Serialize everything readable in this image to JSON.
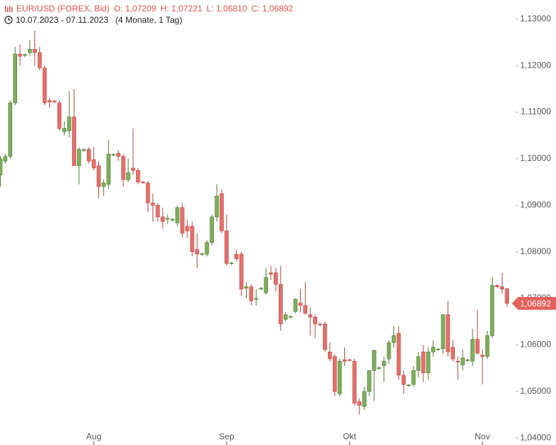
{
  "chart_data": {
    "type": "candlestick",
    "title": "EUR/USD (FOREX, Bid)",
    "ohlc_labels": [
      "O: 1,07209",
      "H: 1,07221",
      "L: 1,06810",
      "C: 1,06892"
    ],
    "date_range": "10.07.2023 - 07.11.2023",
    "duration": "(4 Monate, 1 Tag)",
    "last_label": "1,06892",
    "up_color": "#7fae5a",
    "down_color": "#e4706b",
    "categories": [
      null,
      null,
      null,
      null,
      null,
      null,
      null,
      null,
      null,
      null,
      null,
      null,
      null,
      null,
      null,
      null,
      null,
      null,
      null,
      "Aug",
      null,
      null,
      null,
      null,
      null,
      null,
      null,
      null,
      null,
      null,
      null,
      null,
      null,
      null,
      null,
      null,
      null,
      null,
      null,
      null,
      null,
      null,
      null,
      null,
      null,
      null,
      "Sep",
      null,
      null,
      null,
      null,
      null,
      null,
      null,
      null,
      null,
      null,
      null,
      null,
      null,
      null,
      null,
      null,
      null,
      null,
      null,
      null,
      null,
      null,
      null,
      null,
      "Okt",
      null,
      null,
      null,
      null,
      null,
      null,
      null,
      null,
      null,
      null,
      null,
      null,
      null,
      null,
      null,
      null,
      null,
      null,
      null,
      null,
      null,
      null,
      null,
      null,
      null,
      null,
      "Nov",
      null,
      null,
      null,
      null,
      null
    ],
    "open": [
      1.0965,
      1.0995,
      1.1005,
      1.112,
      1.1225,
      1.1222,
      1.1228,
      1.1235,
      1.1228,
      1.1195,
      1.1125,
      1.1124,
      1.112,
      1.1058,
      1.106,
      1.109,
      1.0985,
      1.1018,
      1.102,
      1.0998,
      1.0985,
      1.094,
      1.0945,
      1.1008,
      1.1012,
      1.1005,
      1.0955,
      1.098,
      1.0975,
      1.095,
      1.0948,
      1.0905,
      1.09,
      1.0875,
      1.087,
      1.0868,
      1.0862,
      1.0895,
      1.0855,
      1.0855,
      1.0805,
      1.0795,
      1.0795,
      1.082,
      1.0875,
      1.0925,
      1.0845,
      1.0775,
      1.0795,
      1.0795,
      1.0722,
      1.0725,
      1.0698,
      1.072,
      1.0712,
      1.0755,
      1.0755,
      1.073,
      1.0655,
      1.066,
      1.0672,
      1.069,
      1.0685,
      1.0665,
      1.066,
      1.0645,
      1.0645,
      1.0585,
      1.0575,
      1.0495,
      1.0568,
      1.0568,
      1.0565,
      1.0478,
      1.0468,
      1.05,
      1.0545,
      1.055,
      1.0555,
      1.057,
      1.0605,
      1.0625,
      1.0535,
      1.0513,
      1.0515,
      1.0545,
      1.0585,
      1.054,
      1.0585,
      1.059,
      1.0592,
      1.0665,
      1.0595,
      1.0565,
      1.0557,
      1.0567,
      1.0565,
      1.0612,
      1.0578,
      1.0575,
      1.062,
      1.0728,
      1.0725,
      1.07209
    ],
    "high": [
      1.1005,
      1.101,
      1.1125,
      1.124,
      1.1245,
      1.1226,
      1.1255,
      1.1275,
      1.124,
      1.12,
      1.113,
      1.1126,
      1.1125,
      1.108,
      1.1145,
      1.115,
      1.1025,
      1.1022,
      1.1025,
      1.1025,
      1.0995,
      1.0955,
      1.104,
      1.1012,
      1.1018,
      1.101,
      1.1,
      1.1065,
      1.098,
      1.0952,
      1.0952,
      1.0925,
      1.0905,
      1.0895,
      1.088,
      1.0872,
      1.09,
      1.0905,
      1.087,
      1.0865,
      1.084,
      1.0798,
      1.0825,
      1.088,
      1.0945,
      1.0935,
      1.088,
      1.0778,
      1.0805,
      1.08,
      1.0735,
      1.073,
      1.072,
      1.0724,
      1.0765,
      1.077,
      1.0765,
      1.077,
      1.067,
      1.0663,
      1.07,
      1.072,
      1.0735,
      1.068,
      1.0665,
      1.0648,
      1.065,
      1.0605,
      1.058,
      1.057,
      1.0595,
      1.057,
      1.057,
      1.0485,
      1.051,
      1.0545,
      1.059,
      1.0553,
      1.0575,
      1.061,
      1.064,
      1.064,
      1.0545,
      1.0516,
      1.0555,
      1.0585,
      1.06,
      1.0595,
      1.061,
      1.0593,
      1.0665,
      1.0695,
      1.061,
      1.0575,
      1.059,
      1.057,
      1.0635,
      1.0675,
      1.059,
      1.063,
      1.0745,
      1.073,
      1.0755,
      1.07221
    ],
    "low": [
      1.094,
      1.099,
      1.1,
      1.1115,
      1.12,
      1.1218,
      1.122,
      1.12,
      1.119,
      1.1115,
      1.111,
      1.112,
      1.106,
      1.105,
      1.1045,
      1.0985,
      1.0945,
      1.1015,
      1.099,
      1.0975,
      1.0915,
      1.092,
      1.0935,
      1.1005,
      1.0995,
      1.094,
      1.095,
      1.0965,
      1.0945,
      1.0947,
      1.0885,
      1.0865,
      1.0865,
      1.085,
      1.086,
      1.0865,
      1.0855,
      1.083,
      1.083,
      1.079,
      1.0765,
      1.0792,
      1.079,
      1.0815,
      1.0865,
      1.084,
      1.077,
      1.0772,
      1.078,
      1.0705,
      1.07,
      1.0685,
      1.0685,
      1.0718,
      1.0708,
      1.074,
      1.0715,
      1.063,
      1.065,
      1.0657,
      1.0668,
      1.067,
      1.0665,
      1.062,
      1.0615,
      1.064,
      1.0585,
      1.0565,
      1.049,
      1.049,
      1.0555,
      1.0565,
      1.047,
      1.045,
      1.046,
      1.049,
      1.048,
      1.0547,
      1.052,
      1.056,
      1.0595,
      1.0525,
      1.0495,
      1.051,
      1.051,
      1.053,
      1.052,
      1.0525,
      1.0575,
      1.0587,
      1.058,
      1.0575,
      1.0565,
      1.0525,
      1.0545,
      1.0564,
      1.0555,
      1.058,
      1.0515,
      1.057,
      1.0615,
      1.0722,
      1.071,
      1.0681
    ],
    "close": [
      1.1,
      1.1005,
      1.112,
      1.1225,
      1.122,
      1.1224,
      1.1235,
      1.1228,
      1.1195,
      1.112,
      1.1122,
      1.1122,
      1.1065,
      1.1065,
      1.109,
      1.0985,
      1.102,
      1.102,
      1.0995,
      1.098,
      1.094,
      1.0948,
      1.101,
      1.1009,
      1.1005,
      1.0955,
      1.097,
      1.0975,
      1.095,
      1.0948,
      1.0905,
      1.09,
      1.0875,
      1.0865,
      1.0872,
      1.087,
      1.0895,
      1.084,
      1.0845,
      1.08,
      1.0795,
      1.0796,
      1.082,
      1.0875,
      1.092,
      1.0845,
      1.0775,
      1.0776,
      1.0785,
      1.072,
      1.0725,
      1.0695,
      1.07,
      1.0722,
      1.0745,
      1.0752,
      1.073,
      1.0645,
      1.0665,
      1.0661,
      1.0698,
      1.0685,
      1.0668,
      1.066,
      1.0645,
      1.0644,
      1.059,
      1.057,
      1.05,
      1.0565,
      1.0565,
      1.0567,
      1.0475,
      1.047,
      1.05,
      1.0545,
      1.0588,
      1.0551,
      1.0565,
      1.0605,
      1.062,
      1.0535,
      1.0515,
      1.0514,
      1.0545,
      1.0575,
      1.054,
      1.0585,
      1.0595,
      1.0591,
      1.0665,
      1.0585,
      1.057,
      1.0563,
      1.0572,
      1.0568,
      1.0612,
      1.0582,
      1.0575,
      1.062,
      1.0728,
      1.0725,
      1.072,
      1.06892
    ],
    "ylim": [
      1.0385,
      1.1341
    ],
    "yticks": [
      {
        "value": 1.04,
        "label": "1,04000"
      },
      {
        "value": 1.05,
        "label": "1,05000"
      },
      {
        "value": 1.06,
        "label": "1,06000"
      },
      {
        "value": 1.07,
        "label": "1,07000"
      },
      {
        "value": 1.08,
        "label": "1,08000"
      },
      {
        "value": 1.09,
        "label": "1,09000"
      },
      {
        "value": 1.1,
        "label": "1,10000"
      },
      {
        "value": 1.11,
        "label": "1,11000"
      },
      {
        "value": 1.12,
        "label": "1,12000"
      },
      {
        "value": 1.13,
        "label": "1,13000"
      }
    ]
  }
}
